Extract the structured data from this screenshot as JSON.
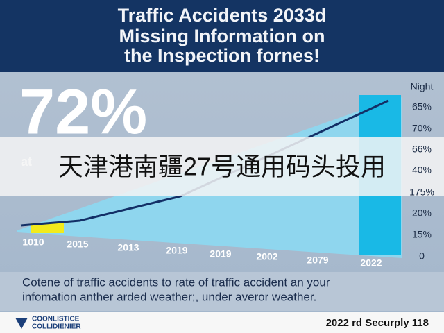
{
  "header": {
    "title_lines": [
      "Traffic Accidents 2033d",
      "Missing Information on",
      "the Inspection fornes!"
    ]
  },
  "stat": {
    "value": "72%",
    "sub": "at"
  },
  "banner": "天津港南疆27号通用码头投用",
  "axis": {
    "right_labels": [
      "Night",
      "65%",
      "70%",
      "66%",
      "40%",
      "175%",
      "20%",
      "15%",
      "0"
    ],
    "bottom_labels": [
      "1010",
      "2015",
      "2013",
      "2019",
      "2019",
      "2002",
      "2079",
      "2022"
    ]
  },
  "caption": [
    "Cotene of traffic accidents to rate of traffic accident an your",
    "infomation anther arded weather;, under averor weather."
  ],
  "footer": {
    "left": [
      "COONLISTICE",
      "COLLIDIENIER"
    ],
    "right": "2022 rd Securply 118"
  }
}
